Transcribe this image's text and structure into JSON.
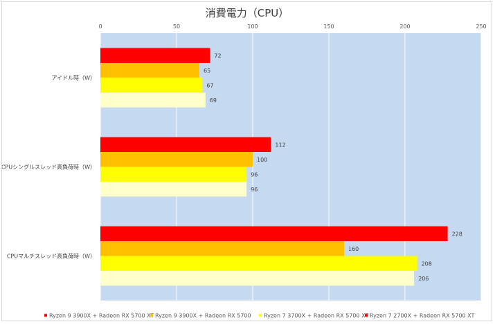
{
  "chart_data": {
    "type": "bar",
    "orientation": "horizontal",
    "title": "消費電力（CPU）",
    "categories": [
      "アイドル時（W）",
      "CPUシングルスレッド高負荷時（W）",
      "CPUマルチスレッド高負荷時（W）"
    ],
    "series": [
      {
        "name": "Ryzen 9 3900X + Radeon RX 5700 XT",
        "color": "#ff0000",
        "values": [
          72,
          112,
          228
        ]
      },
      {
        "name": "Ryzen 9 3900X + Radeon RX 5700",
        "color": "#ffc000",
        "values": [
          65,
          100,
          160
        ]
      },
      {
        "name": "Ryzen 7 3700X + Radeon RX 5700 XT",
        "color": "#ffff00",
        "values": [
          67,
          96,
          208
        ]
      },
      {
        "name": "Ryzen 7 2700X + Radeon RX 5700 XT",
        "color": "#ffffcc",
        "values": [
          69,
          96,
          206
        ]
      }
    ],
    "xlim": [
      0,
      250
    ],
    "xticks": [
      0,
      50,
      100,
      150,
      200,
      250
    ],
    "xaxis_position": "top",
    "grid": true,
    "plot_background": "#c5d9f1",
    "legend_position": "bottom",
    "legend_marker_colors": [
      "#ff0000",
      "#ffc000",
      "#ffff00",
      "#ff0000"
    ]
  }
}
